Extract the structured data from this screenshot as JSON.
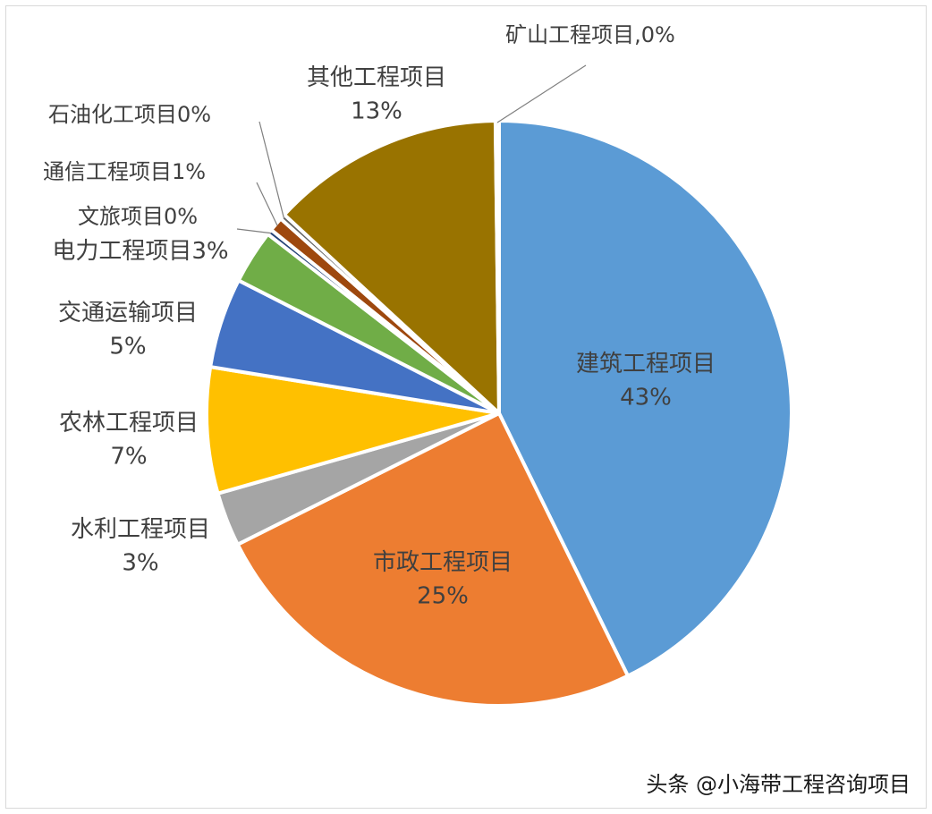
{
  "chart_data": {
    "type": "pie",
    "title": "",
    "start_angle_deg": 0,
    "direction": "clockwise",
    "slices": [
      {
        "label": "建筑工程项目",
        "display": "建筑工程项目\n43%",
        "value": 43,
        "color": "#5b9bd5"
      },
      {
        "label": "市政工程项目",
        "display": "市政工程项目\n25%",
        "value": 25,
        "color": "#ed7d31"
      },
      {
        "label": "水利工程项目",
        "display": "水利工程项目\n3%",
        "value": 3,
        "color": "#a5a5a5"
      },
      {
        "label": "农林工程项目",
        "display": "农林工程项目\n7%",
        "value": 7,
        "color": "#ffc000"
      },
      {
        "label": "交通运输项目",
        "display": "交通运输项目\n5%",
        "value": 5,
        "color": "#4472c4"
      },
      {
        "label": "电力工程项目",
        "display": "电力工程项目3%",
        "value": 3,
        "color": "#70ad47"
      },
      {
        "label": "文旅项目",
        "display": "文旅项目0%",
        "value": 0.3,
        "color": "#264478"
      },
      {
        "label": "通信工程项目",
        "display": "通信工程项目1%",
        "value": 0.8,
        "color": "#9e480e"
      },
      {
        "label": "石油化工项目",
        "display": "石油化工项目0%",
        "value": 0.3,
        "color": "#636363"
      },
      {
        "label": "其他工程项目",
        "display": "其他工程项目\n13%",
        "value": 13,
        "color": "#997300"
      },
      {
        "label": "矿山工程项目",
        "display": "矿山工程项目,0%",
        "value": 0.2,
        "color": "#43682b"
      }
    ]
  },
  "watermark": "头条 @小海带工程咨询项目"
}
